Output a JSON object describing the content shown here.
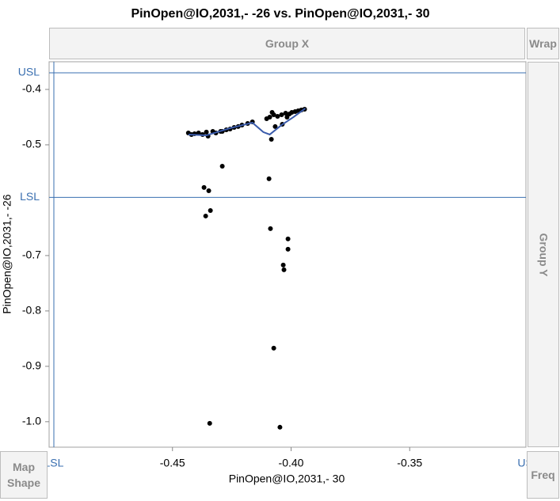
{
  "chart_data": {
    "type": "scatter",
    "title": "PinOpen@IO,2031,- -26 vs. PinOpen@IO,2031,- 30",
    "x_label": "PinOpen@IO,2031,- 30",
    "y_label": "PinOpen@IO,2031,- -26",
    "xlim": [
      -0.502,
      -0.301
    ],
    "ylim": [
      -1.046,
      -0.35
    ],
    "xticks": [
      -0.45,
      {
        "value": -0.4,
        "label": "-0.40"
      },
      -0.35
    ],
    "yticks": [
      -0.4,
      -0.5,
      -0.7,
      -0.8,
      -0.9,
      {
        "value": -1,
        "label": "-1.0"
      }
    ],
    "spec_limits": {
      "x": [
        {
          "label": "LSL",
          "value": -0.5
        },
        {
          "label": "USL",
          "value": -0.3
        }
      ],
      "y": [
        {
          "label": "USL",
          "value": -0.37
        },
        {
          "label": "LSL",
          "value": -0.595
        }
      ],
      "color": "#3a6fb0"
    },
    "series": [
      {
        "color": "#000000",
        "style": "points",
        "x": [
          -0.429,
          -0.4367,
          -0.4347,
          -0.434,
          -0.436,
          -0.4093,
          -0.4087,
          -0.4013,
          -0.4013,
          -0.4033,
          -0.403,
          -0.4073,
          -0.4343,
          -0.4047,
          -0.4083,
          -0.4067,
          -0.4037,
          -0.4433,
          -0.442,
          -0.4407,
          -0.439,
          -0.4373,
          -0.4357,
          -0.435,
          -0.433,
          -0.4317,
          -0.4297,
          -0.429,
          -0.4273,
          -0.4257,
          -0.424,
          -0.4223,
          -0.4207,
          -0.4183,
          -0.4163,
          -0.4103,
          -0.409,
          -0.4073,
          -0.408,
          -0.4057,
          -0.404,
          -0.4023,
          -0.4017,
          -0.4007,
          -0.3997,
          -0.3983,
          -0.397,
          -0.3957,
          -0.3943
        ],
        "values": [
          -0.5386,
          -0.5771,
          -0.5829,
          -0.6186,
          -0.6286,
          -0.5614,
          -0.6514,
          -0.67,
          -0.6886,
          -0.7171,
          -0.7257,
          -0.8671,
          -1.0029,
          -1.01,
          -0.49,
          -0.4671,
          -0.4629,
          -0.4786,
          -0.4814,
          -0.48,
          -0.4786,
          -0.4814,
          -0.4771,
          -0.4843,
          -0.4757,
          -0.4786,
          -0.4757,
          -0.4757,
          -0.4729,
          -0.4714,
          -0.4686,
          -0.4671,
          -0.4643,
          -0.4614,
          -0.4586,
          -0.4529,
          -0.45,
          -0.4457,
          -0.4414,
          -0.4486,
          -0.4457,
          -0.4429,
          -0.45,
          -0.4443,
          -0.4414,
          -0.44,
          -0.4386,
          -0.4371,
          -0.4357
        ]
      },
      {
        "color": "#3a5bab",
        "style": "line",
        "x": [
          -0.4433,
          -0.4357,
          -0.4257,
          -0.4163,
          -0.4117,
          -0.409,
          -0.404,
          -0.399,
          -0.394
        ],
        "values": [
          -0.4814,
          -0.4829,
          -0.47,
          -0.46,
          -0.4771,
          -0.4814,
          -0.4643,
          -0.45,
          -0.4343
        ]
      }
    ]
  },
  "drop_zones": {
    "group_x": "Group X",
    "wrap": "Wrap",
    "group_y": "Group Y",
    "map_shape": "Map Shape",
    "freq": "Freq"
  }
}
